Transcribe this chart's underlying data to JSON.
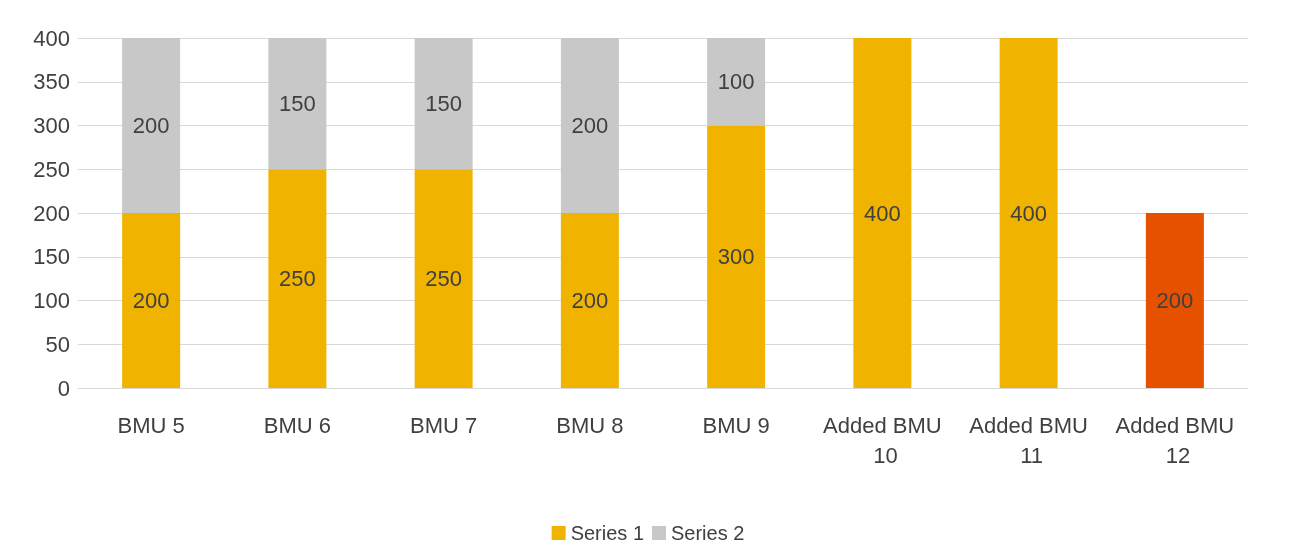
{
  "chart_data": {
    "type": "bar",
    "stacked": true,
    "categories": [
      "BMU 5",
      "BMU 6",
      "BMU 7",
      "BMU 8",
      "BMU 9",
      "Added BMU 10",
      "Added BMU 11",
      "Added BMU 12"
    ],
    "series": [
      {
        "name": "Series 1",
        "color": "#f0b400",
        "colors": [
          "#f0b400",
          "#f0b400",
          "#f0b400",
          "#f0b400",
          "#f0b400",
          "#f0b400",
          "#f0b400",
          "#e65100"
        ],
        "values": [
          200,
          250,
          250,
          200,
          300,
          400,
          400,
          200
        ]
      },
      {
        "name": "Series 2",
        "color": "#c8c8c8",
        "values": [
          200,
          150,
          150,
          200,
          100,
          null,
          null,
          null
        ]
      }
    ],
    "ylim": [
      0,
      400
    ],
    "yticks": [
      0,
      50,
      100,
      150,
      200,
      250,
      300,
      350,
      400
    ],
    "grid": "y",
    "legend": "bottom",
    "data_labels": true
  }
}
